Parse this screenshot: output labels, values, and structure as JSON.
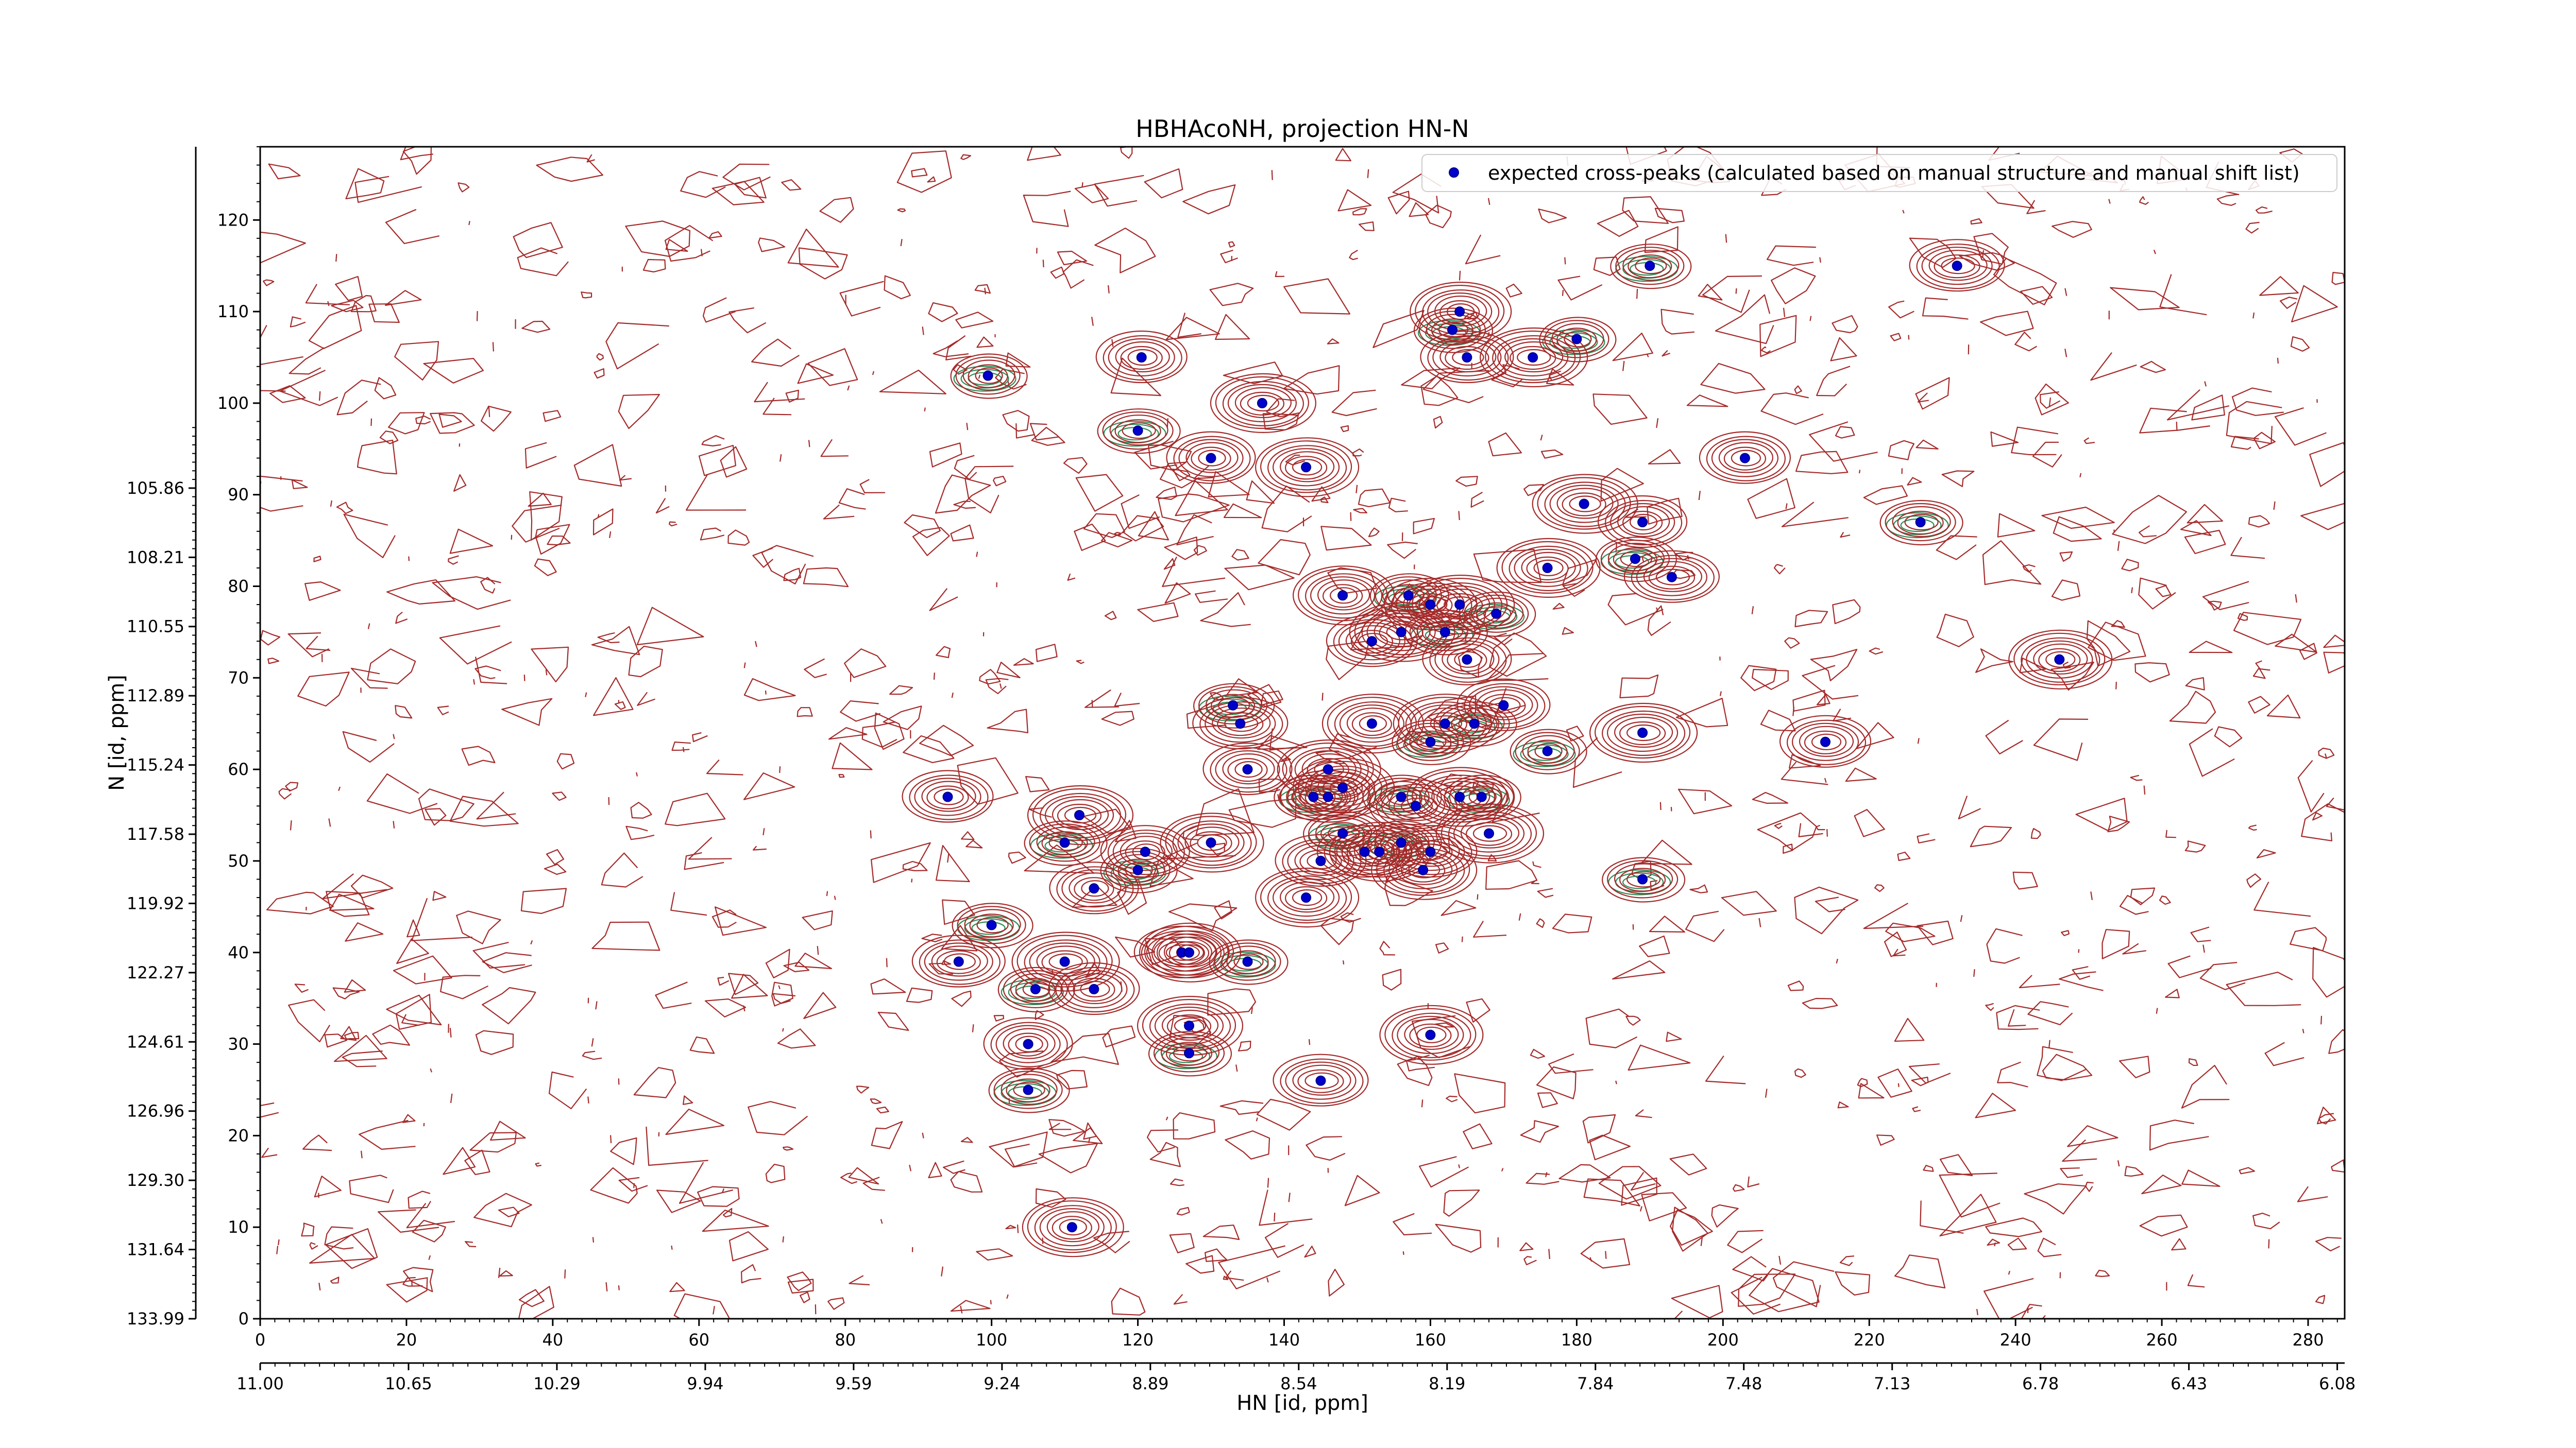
{
  "chart_data": {
    "type": "scatter",
    "title": "HBHAcoNH, projection HN-N",
    "xlabel": "HN [id, ppm]",
    "ylabel": "N [id, ppm]",
    "xlim": [
      0,
      285
    ],
    "ylim": [
      0,
      128
    ],
    "x_ticks": [
      "0",
      "20",
      "40",
      "60",
      "80",
      "100",
      "120",
      "140",
      "160",
      "180",
      "200",
      "220",
      "240",
      "260",
      "280"
    ],
    "y_ticks": [
      "0",
      "10",
      "20",
      "30",
      "40",
      "50",
      "60",
      "70",
      "80",
      "90",
      "100",
      "110",
      "120"
    ],
    "x_ppm_ticks": [
      "11.00",
      "10.65",
      "10.29",
      "9.94",
      "9.59",
      "9.24",
      "8.89",
      "8.54",
      "8.19",
      "7.84",
      "7.48",
      "7.13",
      "6.78",
      "6.43",
      "6.08"
    ],
    "y_ppm_ticks": [
      "133.99",
      "131.64",
      "129.30",
      "126.96",
      "124.61",
      "122.27",
      "119.92",
      "117.58",
      "115.24",
      "112.89",
      "110.55",
      "108.21",
      "105.86"
    ],
    "legend": {
      "placement": "top-right",
      "label": "expected cross-peaks (calculated based on manual structure and manual shift list)"
    },
    "colors": {
      "positive_contours": "#a52a2a",
      "negative_contours": "#2e8b57",
      "peak_marker": "#0000cc"
    },
    "series": [
      {
        "name": "expected cross-peaks (calculated based on manual structure and manual shift list)",
        "points": [
          [
            99.5,
            103
          ],
          [
            120.5,
            105
          ],
          [
            137,
            100
          ],
          [
            120,
            97
          ],
          [
            130,
            94
          ],
          [
            143,
            93
          ],
          [
            190,
            115
          ],
          [
            232,
            115
          ],
          [
            164,
            110
          ],
          [
            163,
            108
          ],
          [
            165,
            105
          ],
          [
            174,
            105
          ],
          [
            180,
            107
          ],
          [
            203,
            94
          ],
          [
            181,
            89
          ],
          [
            227,
            87
          ],
          [
            189,
            87
          ],
          [
            176,
            82
          ],
          [
            188,
            83
          ],
          [
            193,
            81
          ],
          [
            148,
            79
          ],
          [
            157,
            79
          ],
          [
            160,
            78
          ],
          [
            164,
            78
          ],
          [
            169,
            77
          ],
          [
            152,
            74
          ],
          [
            156,
            75
          ],
          [
            162,
            75
          ],
          [
            165,
            72
          ],
          [
            246,
            72
          ],
          [
            133,
            67
          ],
          [
            134,
            65
          ],
          [
            152,
            65
          ],
          [
            160,
            63
          ],
          [
            170,
            67
          ],
          [
            189,
            64
          ],
          [
            176,
            62
          ],
          [
            214,
            63
          ],
          [
            162,
            65
          ],
          [
            166,
            65
          ],
          [
            135,
            60
          ],
          [
            146,
            60
          ],
          [
            144,
            57
          ],
          [
            146,
            57
          ],
          [
            148,
            58
          ],
          [
            156,
            57
          ],
          [
            158,
            56
          ],
          [
            164,
            57
          ],
          [
            167,
            57
          ],
          [
            94,
            57
          ],
          [
            112,
            55
          ],
          [
            110,
            52
          ],
          [
            121,
            51
          ],
          [
            130,
            52
          ],
          [
            148,
            53
          ],
          [
            151,
            51
          ],
          [
            153,
            51
          ],
          [
            156,
            52
          ],
          [
            160,
            51
          ],
          [
            168,
            53
          ],
          [
            120,
            49
          ],
          [
            145,
            50
          ],
          [
            159,
            49
          ],
          [
            189,
            48
          ],
          [
            114,
            47
          ],
          [
            143,
            46
          ],
          [
            100,
            43
          ],
          [
            126,
            40
          ],
          [
            127,
            40
          ],
          [
            135,
            39
          ],
          [
            95.5,
            39
          ],
          [
            110,
            39
          ],
          [
            106,
            36
          ],
          [
            114,
            36
          ],
          [
            127,
            32
          ],
          [
            127,
            29
          ],
          [
            105,
            30
          ],
          [
            160,
            31
          ],
          [
            105,
            25
          ],
          [
            145,
            26
          ],
          [
            111,
            10
          ]
        ]
      }
    ]
  }
}
